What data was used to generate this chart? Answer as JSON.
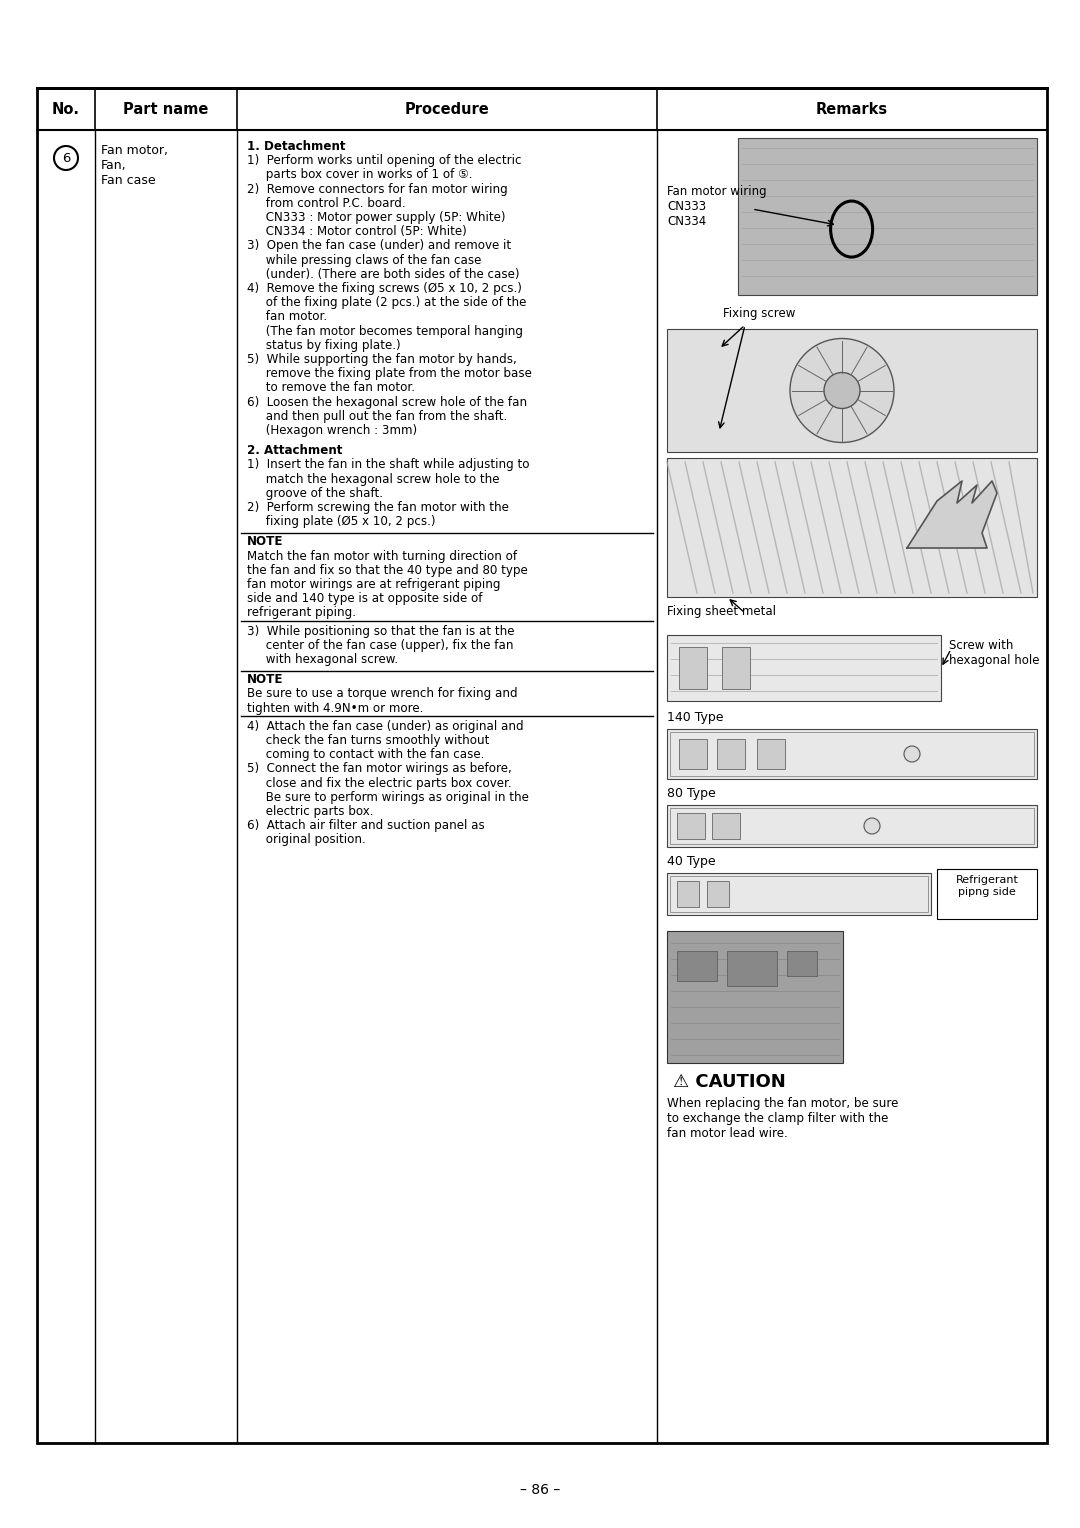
{
  "page_number": "- 86 -",
  "bg_color": "#ffffff",
  "header_no": "No.",
  "header_partname": "Part name",
  "header_procedure": "Procedure",
  "header_remarks": "Remarks",
  "row_number": "6",
  "part_name": "Fan motor,\nFan,\nFan case",
  "caution_text": "When replacing the fan motor, be sure\nto exchange the clamp filter with the\nfan motor lead wire.",
  "remarks_img1_label": "Fan motor wiring\nCN333\nCN334",
  "remarks_img2_label": "Fixing screw",
  "remarks_img3_label": "Fixing sheet metal",
  "remarks_img4_label_a": "Screw with",
  "remarks_img4_label_b": "hexagonal hole",
  "label_140": "140 Type",
  "label_80": "80 Type",
  "label_40": "40 Type",
  "label_refrig": "Refrigerant\npipng side"
}
